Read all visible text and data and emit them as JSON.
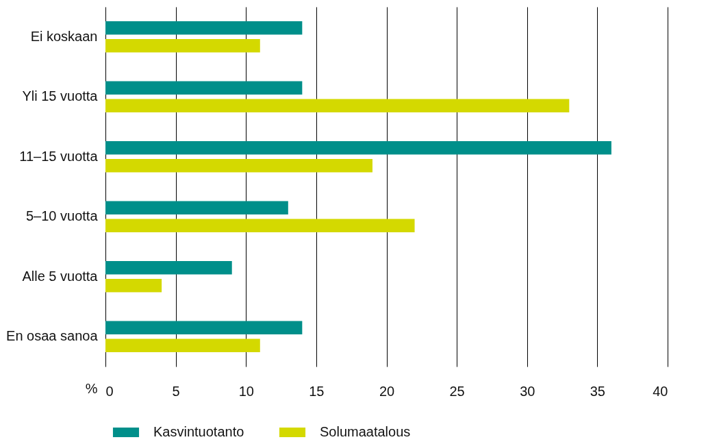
{
  "chart_data": {
    "type": "bar",
    "orientation": "horizontal",
    "categories": [
      "Ei koskaan",
      "Yli 15 vuotta",
      "11–15 vuotta",
      "5–10 vuotta",
      "Alle 5 vuotta",
      "En osaa sanoa"
    ],
    "series": [
      {
        "name": "Kasvintuotanto",
        "color": "#008f8a",
        "values": [
          14,
          14,
          36,
          13,
          9,
          14
        ]
      },
      {
        "name": "Solumaatalous",
        "color": "#d4d900",
        "values": [
          11,
          33,
          19,
          22,
          4,
          11
        ]
      }
    ],
    "xlabel": "%",
    "xlim": [
      0,
      40
    ],
    "xticks": [
      0,
      5,
      10,
      15,
      20,
      25,
      30,
      35,
      40
    ],
    "grid": "x",
    "legend": "bottom"
  }
}
